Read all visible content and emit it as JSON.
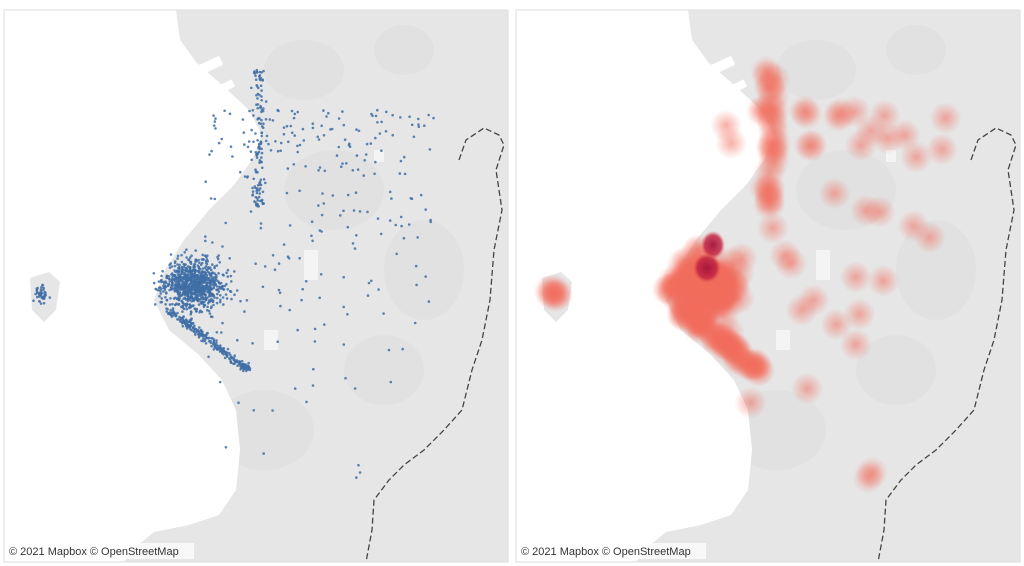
{
  "panels": [
    {
      "attribution": "© 2021 Mapbox © OpenStreetMap"
    },
    {
      "attribution": "© 2021 Mapbox © OpenStreetMap"
    }
  ]
}
